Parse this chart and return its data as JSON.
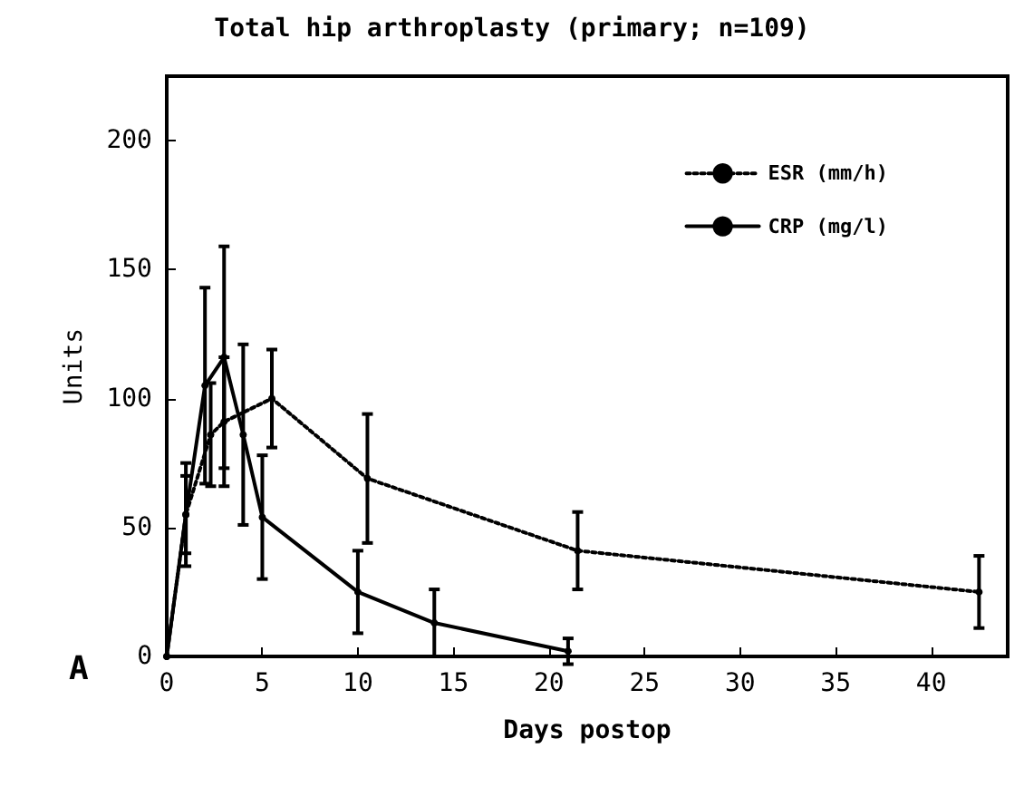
{
  "chart_data": {
    "type": "line",
    "title": "Total hip arthroplasty (primary; n=109)",
    "xlabel": "Days postop",
    "ylabel": "Units",
    "annotations": [
      "A"
    ],
    "xlim": [
      0,
      44
    ],
    "xticks": [
      0,
      5,
      10,
      15,
      20,
      25,
      30,
      35,
      40
    ],
    "ylim": [
      0,
      225
    ],
    "yticks": [
      0,
      50,
      100,
      150,
      200
    ],
    "grid": false,
    "legend": "top right",
    "marker": "circle",
    "series": [
      {
        "name": "ESR (mm/h)",
        "color": "#000000",
        "line_style": "dotted",
        "x": [
          0,
          1,
          2.3,
          3,
          5.5,
          10.5,
          21.5,
          42.5
        ],
        "values": [
          0,
          55,
          86,
          91,
          100,
          69,
          41,
          25
        ],
        "errors": [
          null,
          15,
          20,
          25,
          19,
          25,
          15,
          14
        ]
      },
      {
        "name": "CRP (mg/l)",
        "color": "#000000",
        "line_style": "solid",
        "x": [
          0,
          1,
          2,
          3,
          4,
          5,
          10,
          14,
          21
        ],
        "values": [
          0,
          55,
          105,
          116,
          86,
          54,
          25,
          13,
          2
        ],
        "errors": [
          null,
          20,
          38,
          43,
          35,
          24,
          16,
          13,
          5
        ]
      }
    ]
  }
}
